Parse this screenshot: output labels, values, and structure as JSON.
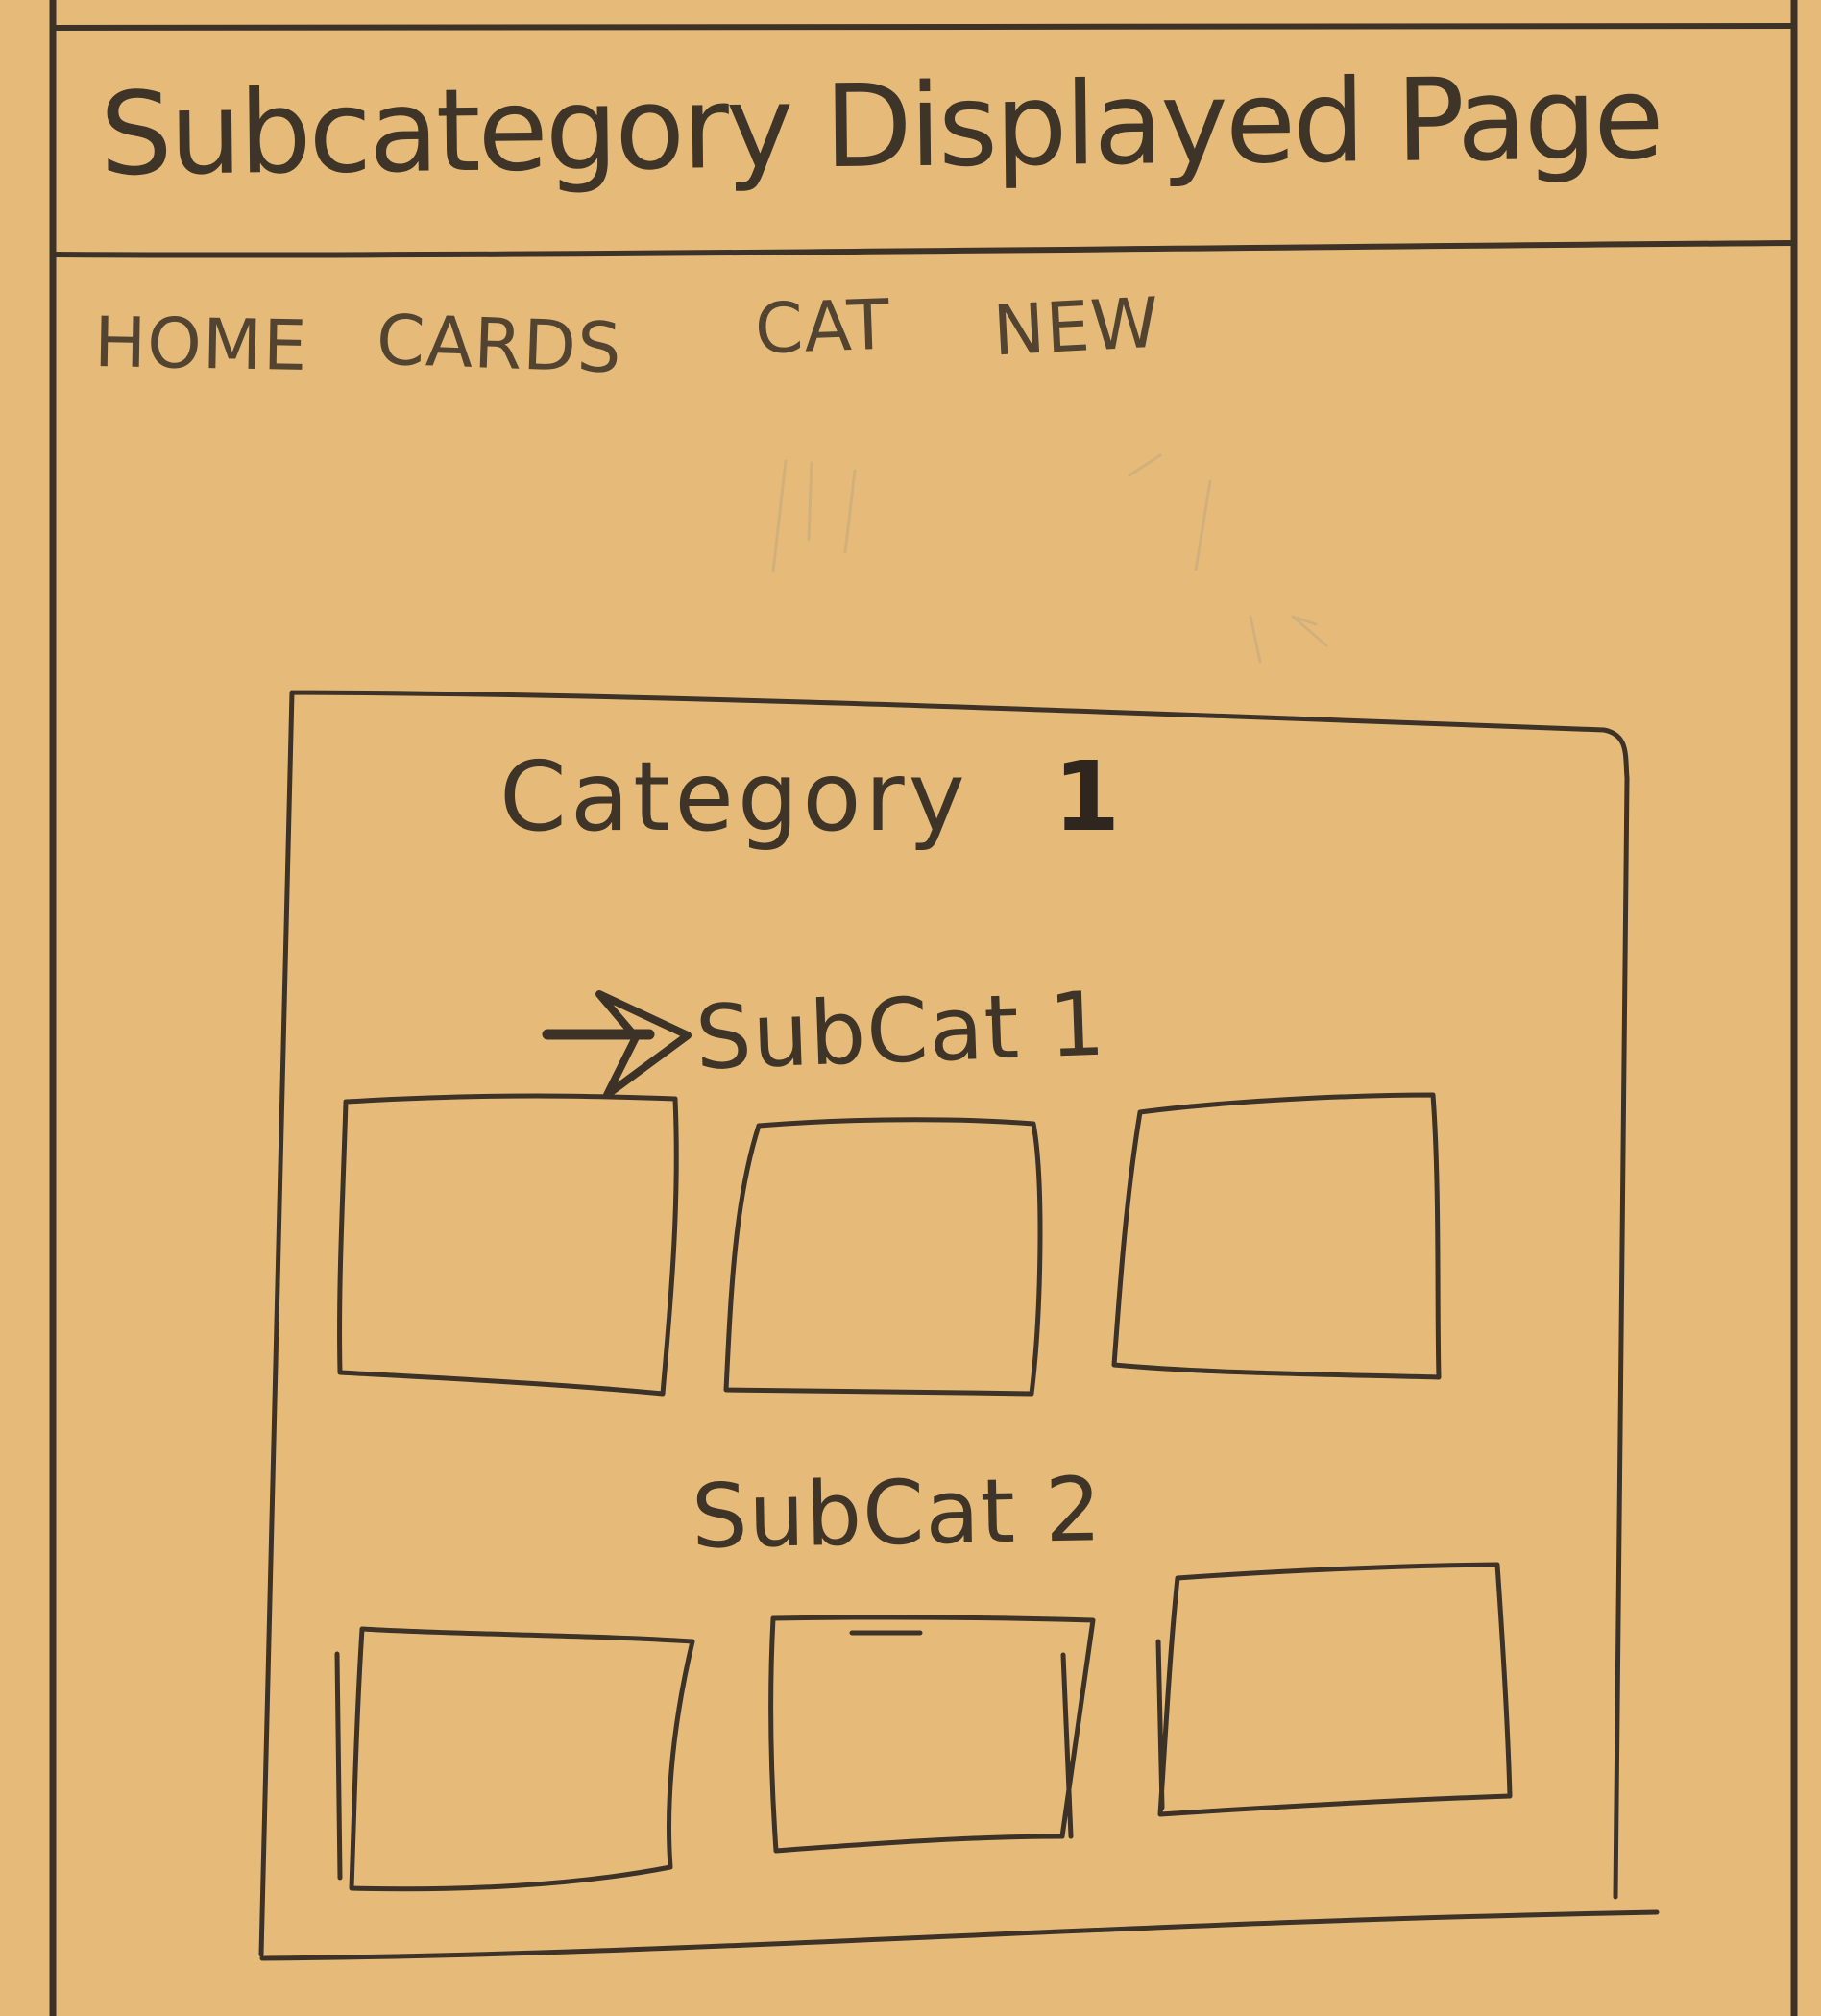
{
  "page": {
    "title": "Subcategory Displayed Page",
    "nav": [
      {
        "label": "HOME"
      },
      {
        "label": "CARDS"
      },
      {
        "label": "CAT"
      },
      {
        "label": "NEW"
      }
    ]
  },
  "category": {
    "title": "Category",
    "number": "1",
    "subcategories": [
      {
        "label": "SubCat 1",
        "cards": 3
      },
      {
        "label": "SubCat 2",
        "cards": 3
      }
    ]
  },
  "colors": {
    "paper": "#e6bb79",
    "ink": "#3d3227"
  }
}
